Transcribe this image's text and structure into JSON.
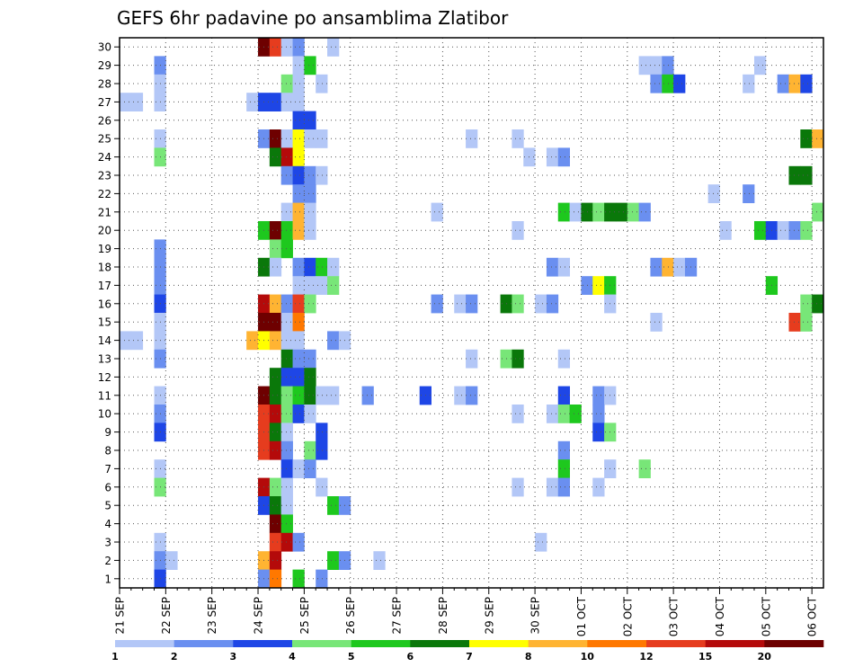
{
  "chart_data": {
    "type": "heatmap",
    "title": "GEFS 6hr padavine po ansamblima Zlatibor",
    "x_tick_labels": [
      "21 SEP",
      "22 SEP",
      "23 SEP",
      "24 SEP",
      "25 SEP",
      "26 SEP",
      "27 SEP",
      "28 SEP",
      "29 SEP",
      "30 SEP",
      "01 OCT",
      "02 OCT",
      "03 OCT",
      "04 OCT",
      "05 OCT",
      "06 OCT"
    ],
    "y_tick_labels": [
      "1",
      "2",
      "3",
      "4",
      "5",
      "6",
      "7",
      "8",
      "9",
      "10",
      "11",
      "12",
      "13",
      "14",
      "15",
      "16",
      "17",
      "18",
      "19",
      "20",
      "21",
      "22",
      "23",
      "24",
      "25",
      "26",
      "27",
      "28",
      "29",
      "30"
    ],
    "steps_per_day": 4,
    "grid": "dotted",
    "colorbar": {
      "labels": [
        "1",
        "2",
        "3",
        "4",
        "5",
        "6",
        "7",
        "8",
        "10",
        "12",
        "15",
        "20"
      ],
      "colors": [
        "#b3c7f7",
        "#6a8ff0",
        "#1e46e6",
        "#78e678",
        "#1ec81e",
        "#0a780a",
        "#ffff00",
        "#ffb432",
        "#ff7800",
        "#e63c1e",
        "#b40a0a",
        "#6e0000"
      ]
    },
    "cells": [
      {
        "m": 30,
        "s": 12,
        "v": 11
      },
      {
        "m": 30,
        "s": 13,
        "v": 9
      },
      {
        "m": 30,
        "s": 14,
        "v": 0
      },
      {
        "m": 30,
        "s": 15,
        "v": 1
      },
      {
        "m": 30,
        "s": 18,
        "v": 0
      },
      {
        "m": 29,
        "s": 3,
        "v": 1
      },
      {
        "m": 29,
        "s": 15,
        "v": 0
      },
      {
        "m": 29,
        "s": 16,
        "v": 4
      },
      {
        "m": 29,
        "s": 45,
        "v": 0
      },
      {
        "m": 29,
        "s": 46,
        "v": 0
      },
      {
        "m": 29,
        "s": 47,
        "v": 1
      },
      {
        "m": 29,
        "s": 55,
        "v": 0
      },
      {
        "m": 28,
        "s": 3,
        "v": 0
      },
      {
        "m": 28,
        "s": 14,
        "v": 3
      },
      {
        "m": 28,
        "s": 15,
        "v": 0
      },
      {
        "m": 28,
        "s": 17,
        "v": 0
      },
      {
        "m": 28,
        "s": 46,
        "v": 1
      },
      {
        "m": 28,
        "s": 47,
        "v": 4
      },
      {
        "m": 28,
        "s": 48,
        "v": 2
      },
      {
        "m": 28,
        "s": 54,
        "v": 0
      },
      {
        "m": 28,
        "s": 57,
        "v": 1
      },
      {
        "m": 28,
        "s": 58,
        "v": 7
      },
      {
        "m": 28,
        "s": 59,
        "v": 2
      },
      {
        "m": 27,
        "s": 0,
        "v": 0
      },
      {
        "m": 27,
        "s": 1,
        "v": 0
      },
      {
        "m": 27,
        "s": 3,
        "v": 0
      },
      {
        "m": 27,
        "s": 11,
        "v": 0
      },
      {
        "m": 27,
        "s": 12,
        "v": 2
      },
      {
        "m": 27,
        "s": 13,
        "v": 2
      },
      {
        "m": 27,
        "s": 14,
        "v": 0
      },
      {
        "m": 27,
        "s": 15,
        "v": 0
      },
      {
        "m": 26,
        "s": 15,
        "v": 2
      },
      {
        "m": 26,
        "s": 16,
        "v": 2
      },
      {
        "m": 25,
        "s": 3,
        "v": 0
      },
      {
        "m": 25,
        "s": 12,
        "v": 1
      },
      {
        "m": 25,
        "s": 13,
        "v": 11
      },
      {
        "m": 25,
        "s": 14,
        "v": 0
      },
      {
        "m": 25,
        "s": 15,
        "v": 6
      },
      {
        "m": 25,
        "s": 16,
        "v": 0
      },
      {
        "m": 25,
        "s": 17,
        "v": 0
      },
      {
        "m": 25,
        "s": 30,
        "v": 0
      },
      {
        "m": 25,
        "s": 34,
        "v": 0
      },
      {
        "m": 25,
        "s": 59,
        "v": 5
      },
      {
        "m": 25,
        "s": 60,
        "v": 7
      },
      {
        "m": 24,
        "s": 3,
        "v": 3
      },
      {
        "m": 24,
        "s": 13,
        "v": 5
      },
      {
        "m": 24,
        "s": 14,
        "v": 10
      },
      {
        "m": 24,
        "s": 15,
        "v": 6
      },
      {
        "m": 24,
        "s": 35,
        "v": 0
      },
      {
        "m": 24,
        "s": 37,
        "v": 0
      },
      {
        "m": 24,
        "s": 38,
        "v": 1
      },
      {
        "m": 23,
        "s": 14,
        "v": 1
      },
      {
        "m": 23,
        "s": 15,
        "v": 2
      },
      {
        "m": 23,
        "s": 16,
        "v": 1
      },
      {
        "m": 23,
        "s": 17,
        "v": 0
      },
      {
        "m": 23,
        "s": 58,
        "v": 5
      },
      {
        "m": 23,
        "s": 59,
        "v": 5
      },
      {
        "m": 22,
        "s": 15,
        "v": 1
      },
      {
        "m": 22,
        "s": 16,
        "v": 1
      },
      {
        "m": 22,
        "s": 51,
        "v": 0
      },
      {
        "m": 22,
        "s": 54,
        "v": 1
      },
      {
        "m": 21,
        "s": 14,
        "v": 0
      },
      {
        "m": 21,
        "s": 15,
        "v": 7
      },
      {
        "m": 21,
        "s": 16,
        "v": 0
      },
      {
        "m": 21,
        "s": 27,
        "v": 0
      },
      {
        "m": 21,
        "s": 38,
        "v": 4
      },
      {
        "m": 21,
        "s": 39,
        "v": 0
      },
      {
        "m": 21,
        "s": 40,
        "v": 5
      },
      {
        "m": 21,
        "s": 41,
        "v": 3
      },
      {
        "m": 21,
        "s": 42,
        "v": 5
      },
      {
        "m": 21,
        "s": 43,
        "v": 5
      },
      {
        "m": 21,
        "s": 44,
        "v": 3
      },
      {
        "m": 21,
        "s": 45,
        "v": 1
      },
      {
        "m": 21,
        "s": 60,
        "v": 3
      },
      {
        "m": 20,
        "s": 12,
        "v": 4
      },
      {
        "m": 20,
        "s": 13,
        "v": 11
      },
      {
        "m": 20,
        "s": 14,
        "v": 4
      },
      {
        "m": 20,
        "s": 15,
        "v": 7
      },
      {
        "m": 20,
        "s": 16,
        "v": 0
      },
      {
        "m": 20,
        "s": 34,
        "v": 0
      },
      {
        "m": 20,
        "s": 52,
        "v": 0
      },
      {
        "m": 20,
        "s": 55,
        "v": 4
      },
      {
        "m": 20,
        "s": 56,
        "v": 2
      },
      {
        "m": 20,
        "s": 57,
        "v": 0
      },
      {
        "m": 20,
        "s": 58,
        "v": 1
      },
      {
        "m": 20,
        "s": 59,
        "v": 3
      },
      {
        "m": 19,
        "s": 3,
        "v": 1
      },
      {
        "m": 19,
        "s": 13,
        "v": 3
      },
      {
        "m": 19,
        "s": 14,
        "v": 4
      },
      {
        "m": 18,
        "s": 3,
        "v": 1
      },
      {
        "m": 18,
        "s": 12,
        "v": 5
      },
      {
        "m": 18,
        "s": 13,
        "v": 0
      },
      {
        "m": 18,
        "s": 15,
        "v": 1
      },
      {
        "m": 18,
        "s": 16,
        "v": 2
      },
      {
        "m": 18,
        "s": 17,
        "v": 4
      },
      {
        "m": 18,
        "s": 18,
        "v": 0
      },
      {
        "m": 18,
        "s": 37,
        "v": 1
      },
      {
        "m": 18,
        "s": 38,
        "v": 0
      },
      {
        "m": 18,
        "s": 46,
        "v": 1
      },
      {
        "m": 18,
        "s": 47,
        "v": 7
      },
      {
        "m": 18,
        "s": 48,
        "v": 0
      },
      {
        "m": 18,
        "s": 49,
        "v": 1
      },
      {
        "m": 17,
        "s": 3,
        "v": 1
      },
      {
        "m": 17,
        "s": 15,
        "v": 0
      },
      {
        "m": 17,
        "s": 16,
        "v": 0
      },
      {
        "m": 17,
        "s": 17,
        "v": 0
      },
      {
        "m": 17,
        "s": 18,
        "v": 3
      },
      {
        "m": 17,
        "s": 40,
        "v": 1
      },
      {
        "m": 17,
        "s": 41,
        "v": 6
      },
      {
        "m": 17,
        "s": 42,
        "v": 4
      },
      {
        "m": 17,
        "s": 56,
        "v": 4
      },
      {
        "m": 16,
        "s": 3,
        "v": 2
      },
      {
        "m": 16,
        "s": 12,
        "v": 10
      },
      {
        "m": 16,
        "s": 13,
        "v": 7
      },
      {
        "m": 16,
        "s": 14,
        "v": 1
      },
      {
        "m": 16,
        "s": 15,
        "v": 9
      },
      {
        "m": 16,
        "s": 16,
        "v": 3
      },
      {
        "m": 16,
        "s": 27,
        "v": 1
      },
      {
        "m": 16,
        "s": 29,
        "v": 0
      },
      {
        "m": 16,
        "s": 30,
        "v": 1
      },
      {
        "m": 16,
        "s": 33,
        "v": 5
      },
      {
        "m": 16,
        "s": 34,
        "v": 3
      },
      {
        "m": 16,
        "s": 36,
        "v": 0
      },
      {
        "m": 16,
        "s": 37,
        "v": 1
      },
      {
        "m": 16,
        "s": 42,
        "v": 0
      },
      {
        "m": 16,
        "s": 59,
        "v": 3
      },
      {
        "m": 16,
        "s": 60,
        "v": 5
      },
      {
        "m": 15,
        "s": 3,
        "v": 0
      },
      {
        "m": 15,
        "s": 12,
        "v": 11
      },
      {
        "m": 15,
        "s": 13,
        "v": 11
      },
      {
        "m": 15,
        "s": 14,
        "v": 0
      },
      {
        "m": 15,
        "s": 15,
        "v": 8
      },
      {
        "m": 15,
        "s": 46,
        "v": 0
      },
      {
        "m": 15,
        "s": 58,
        "v": 9
      },
      {
        "m": 15,
        "s": 59,
        "v": 3
      },
      {
        "m": 14,
        "s": 0,
        "v": 0
      },
      {
        "m": 14,
        "s": 1,
        "v": 0
      },
      {
        "m": 14,
        "s": 3,
        "v": 0
      },
      {
        "m": 14,
        "s": 11,
        "v": 7
      },
      {
        "m": 14,
        "s": 12,
        "v": 6
      },
      {
        "m": 14,
        "s": 13,
        "v": 7
      },
      {
        "m": 14,
        "s": 14,
        "v": 0
      },
      {
        "m": 14,
        "s": 15,
        "v": 0
      },
      {
        "m": 14,
        "s": 18,
        "v": 1
      },
      {
        "m": 14,
        "s": 19,
        "v": 0
      },
      {
        "m": 13,
        "s": 3,
        "v": 1
      },
      {
        "m": 13,
        "s": 14,
        "v": 5
      },
      {
        "m": 13,
        "s": 15,
        "v": 1
      },
      {
        "m": 13,
        "s": 16,
        "v": 1
      },
      {
        "m": 13,
        "s": 30,
        "v": 0
      },
      {
        "m": 13,
        "s": 33,
        "v": 3
      },
      {
        "m": 13,
        "s": 34,
        "v": 5
      },
      {
        "m": 13,
        "s": 38,
        "v": 0
      },
      {
        "m": 12,
        "s": 13,
        "v": 5
      },
      {
        "m": 12,
        "s": 14,
        "v": 2
      },
      {
        "m": 12,
        "s": 15,
        "v": 2
      },
      {
        "m": 12,
        "s": 16,
        "v": 5
      },
      {
        "m": 11,
        "s": 3,
        "v": 0
      },
      {
        "m": 11,
        "s": 12,
        "v": 11
      },
      {
        "m": 11,
        "s": 13,
        "v": 5
      },
      {
        "m": 11,
        "s": 14,
        "v": 3
      },
      {
        "m": 11,
        "s": 15,
        "v": 4
      },
      {
        "m": 11,
        "s": 16,
        "v": 5
      },
      {
        "m": 11,
        "s": 17,
        "v": 0
      },
      {
        "m": 11,
        "s": 18,
        "v": 0
      },
      {
        "m": 11,
        "s": 21,
        "v": 1
      },
      {
        "m": 11,
        "s": 26,
        "v": 2
      },
      {
        "m": 11,
        "s": 29,
        "v": 0
      },
      {
        "m": 11,
        "s": 30,
        "v": 1
      },
      {
        "m": 11,
        "s": 38,
        "v": 2
      },
      {
        "m": 11,
        "s": 41,
        "v": 1
      },
      {
        "m": 11,
        "s": 42,
        "v": 0
      },
      {
        "m": 10,
        "s": 3,
        "v": 1
      },
      {
        "m": 10,
        "s": 12,
        "v": 9
      },
      {
        "m": 10,
        "s": 13,
        "v": 10
      },
      {
        "m": 10,
        "s": 14,
        "v": 3
      },
      {
        "m": 10,
        "s": 15,
        "v": 2
      },
      {
        "m": 10,
        "s": 16,
        "v": 0
      },
      {
        "m": 10,
        "s": 34,
        "v": 0
      },
      {
        "m": 10,
        "s": 37,
        "v": 0
      },
      {
        "m": 10,
        "s": 38,
        "v": 3
      },
      {
        "m": 10,
        "s": 39,
        "v": 4
      },
      {
        "m": 10,
        "s": 41,
        "v": 1
      },
      {
        "m": 9,
        "s": 3,
        "v": 2
      },
      {
        "m": 9,
        "s": 12,
        "v": 9
      },
      {
        "m": 9,
        "s": 13,
        "v": 5
      },
      {
        "m": 9,
        "s": 14,
        "v": 0
      },
      {
        "m": 9,
        "s": 17,
        "v": 2
      },
      {
        "m": 9,
        "s": 41,
        "v": 2
      },
      {
        "m": 9,
        "s": 42,
        "v": 3
      },
      {
        "m": 8,
        "s": 12,
        "v": 9
      },
      {
        "m": 8,
        "s": 13,
        "v": 10
      },
      {
        "m": 8,
        "s": 14,
        "v": 1
      },
      {
        "m": 8,
        "s": 16,
        "v": 3
      },
      {
        "m": 8,
        "s": 17,
        "v": 2
      },
      {
        "m": 8,
        "s": 38,
        "v": 1
      },
      {
        "m": 7,
        "s": 3,
        "v": 0
      },
      {
        "m": 7,
        "s": 14,
        "v": 2
      },
      {
        "m": 7,
        "s": 15,
        "v": 0
      },
      {
        "m": 7,
        "s": 16,
        "v": 1
      },
      {
        "m": 7,
        "s": 38,
        "v": 4
      },
      {
        "m": 7,
        "s": 42,
        "v": 0
      },
      {
        "m": 7,
        "s": 45,
        "v": 3
      },
      {
        "m": 6,
        "s": 3,
        "v": 3
      },
      {
        "m": 6,
        "s": 12,
        "v": 10
      },
      {
        "m": 6,
        "s": 13,
        "v": 3
      },
      {
        "m": 6,
        "s": 14,
        "v": 0
      },
      {
        "m": 6,
        "s": 17,
        "v": 0
      },
      {
        "m": 6,
        "s": 34,
        "v": 0
      },
      {
        "m": 6,
        "s": 37,
        "v": 0
      },
      {
        "m": 6,
        "s": 38,
        "v": 1
      },
      {
        "m": 6,
        "s": 41,
        "v": 0
      },
      {
        "m": 5,
        "s": 12,
        "v": 2
      },
      {
        "m": 5,
        "s": 13,
        "v": 5
      },
      {
        "m": 5,
        "s": 14,
        "v": 0
      },
      {
        "m": 5,
        "s": 18,
        "v": 4
      },
      {
        "m": 5,
        "s": 19,
        "v": 1
      },
      {
        "m": 4,
        "s": 13,
        "v": 11
      },
      {
        "m": 4,
        "s": 14,
        "v": 4
      },
      {
        "m": 3,
        "s": 3,
        "v": 0
      },
      {
        "m": 3,
        "s": 13,
        "v": 9
      },
      {
        "m": 3,
        "s": 14,
        "v": 10
      },
      {
        "m": 3,
        "s": 15,
        "v": 1
      },
      {
        "m": 3,
        "s": 36,
        "v": 0
      },
      {
        "m": 2,
        "s": 3,
        "v": 1
      },
      {
        "m": 2,
        "s": 4,
        "v": 0
      },
      {
        "m": 2,
        "s": 12,
        "v": 7
      },
      {
        "m": 2,
        "s": 13,
        "v": 10
      },
      {
        "m": 2,
        "s": 18,
        "v": 4
      },
      {
        "m": 2,
        "s": 19,
        "v": 1
      },
      {
        "m": 2,
        "s": 22,
        "v": 0
      },
      {
        "m": 1,
        "s": 3,
        "v": 2
      },
      {
        "m": 1,
        "s": 12,
        "v": 1
      },
      {
        "m": 1,
        "s": 13,
        "v": 8
      },
      {
        "m": 1,
        "s": 15,
        "v": 4
      },
      {
        "m": 1,
        "s": 17,
        "v": 1
      }
    ]
  }
}
